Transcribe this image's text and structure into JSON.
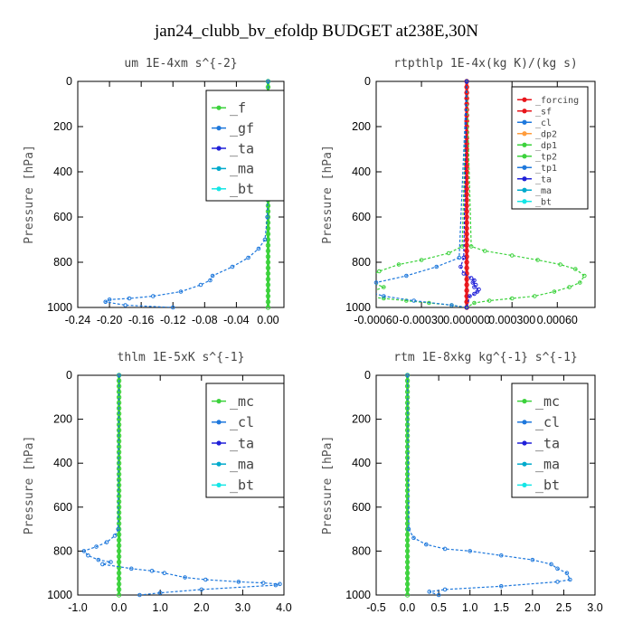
{
  "figure_title": "jan24_clubb_bv_efoldp  BUDGET at238E,30N",
  "colors": {
    "forcing": "#e8151b",
    "sf": "#e8151b",
    "f": "#3cd23c",
    "gf": "#1e78dc",
    "mc": "#3cd23c",
    "cl": "#1e78dc",
    "dp2": "#ff9c3c",
    "dp1": "#3cd23c",
    "tp2": "#3cd23c",
    "tp1": "#1e78dc",
    "ta": "#2020d8",
    "ma": "#00aacc",
    "bt": "#14e6e6"
  },
  "chart_data": [
    {
      "type": "line",
      "title": "um  1E-4xm s^{-2}",
      "ylabel": "Pressure [hPa]",
      "xlim": [
        -0.24,
        0.02
      ],
      "ylim": [
        1000,
        0
      ],
      "xticks": [
        -0.24,
        -0.2,
        -0.16,
        -0.12,
        -0.08,
        -0.04,
        0.0
      ],
      "xtick_labels": [
        "-0.24",
        "-0.20",
        "-0.16",
        "-0.12",
        "-0.08",
        "-0.04",
        "0.00"
      ],
      "yticks": [
        0,
        200,
        400,
        600,
        800,
        1000
      ],
      "legend_position": "top-right",
      "legend_font": 15,
      "series": [
        {
          "name": "_f",
          "key": "f",
          "x": [
            0,
            0,
            0,
            0,
            0,
            0,
            0,
            0,
            0,
            0,
            0,
            0,
            0,
            0,
            0,
            0,
            0,
            0,
            0,
            0,
            0,
            0,
            0,
            0,
            0,
            0,
            0,
            0,
            0,
            0,
            0,
            0,
            0,
            0,
            0,
            0,
            0,
            0,
            0,
            0,
            0
          ],
          "y": [
            0,
            25,
            50,
            75,
            100,
            125,
            150,
            175,
            200,
            225,
            250,
            275,
            300,
            325,
            350,
            375,
            400,
            425,
            450,
            475,
            500,
            525,
            550,
            575,
            600,
            625,
            650,
            675,
            700,
            725,
            750,
            775,
            800,
            825,
            850,
            875,
            900,
            925,
            950,
            975,
            1000
          ]
        },
        {
          "name": "_gf",
          "key": "gf",
          "x": [
            0,
            -0.0005,
            -0.001,
            -0.004,
            -0.012,
            -0.025,
            -0.045,
            -0.07,
            -0.073,
            -0.085,
            -0.11,
            -0.145,
            -0.175,
            -0.2,
            -0.205,
            -0.18,
            -0.12
          ],
          "y": [
            0,
            400,
            600,
            700,
            740,
            780,
            820,
            860,
            880,
            900,
            930,
            950,
            960,
            965,
            975,
            990,
            1000
          ]
        },
        {
          "name": "_ta",
          "key": "ta",
          "x": [],
          "y": []
        },
        {
          "name": "_ma",
          "key": "ma",
          "x": [],
          "y": []
        },
        {
          "name": "_bt",
          "key": "bt",
          "x": [],
          "y": []
        }
      ]
    },
    {
      "type": "line",
      "title": "rtpthlp  1E-4x(kg K)/(kg s)",
      "ylabel": "Pressure [hPa]",
      "xlim": [
        -0.0006,
        0.00085
      ],
      "ylim": [
        1000,
        0
      ],
      "xticks": [
        -0.0006,
        -0.0003,
        0.0,
        0.0003,
        0.0006
      ],
      "xtick_labels": [
        "-0.00060",
        "-0.00030",
        "0.000000",
        "0.000300",
        "0.00060"
      ],
      "yticks": [
        0,
        200,
        400,
        600,
        800,
        1000
      ],
      "legend_position": "top-right",
      "legend_font": 10,
      "series": [
        {
          "name": "_forcing",
          "key": "forcing",
          "x": [
            0,
            0,
            0,
            0,
            0,
            0,
            0,
            0,
            0,
            0,
            0,
            0,
            0,
            0,
            0,
            0,
            0,
            0,
            0,
            0,
            0,
            0,
            0,
            0,
            0,
            0,
            0,
            0,
            0,
            0,
            0,
            0,
            0,
            0,
            0,
            0,
            0,
            0,
            0,
            0,
            0
          ],
          "y": [
            0,
            25,
            50,
            75,
            100,
            125,
            150,
            175,
            200,
            225,
            250,
            275,
            300,
            325,
            350,
            375,
            400,
            425,
            450,
            475,
            500,
            525,
            550,
            575,
            600,
            625,
            650,
            675,
            700,
            725,
            750,
            775,
            800,
            825,
            850,
            875,
            900,
            925,
            950,
            975,
            1000
          ]
        },
        {
          "name": "_sf",
          "key": "sf",
          "x": [
            0,
            0
          ],
          "y": [
            0,
            1000
          ]
        },
        {
          "name": "_cl",
          "key": "cl",
          "x": [],
          "y": []
        },
        {
          "name": "_dp2",
          "key": "dp2",
          "x": [],
          "y": []
        },
        {
          "name": "_dp1",
          "key": "dp1",
          "x": [
            0,
            3e-05,
            0.00012,
            0.0003,
            0.00047,
            0.00062,
            0.00072,
            0.00078,
            0.00075,
            0.00068,
            0.00058,
            0.00045,
            0.0003,
            0.00015,
            5e-05,
            0
          ],
          "y": [
            0,
            730,
            750,
            770,
            790,
            810,
            830,
            860,
            890,
            910,
            930,
            950,
            960,
            970,
            980,
            1000
          ]
        },
        {
          "name": "_tp2",
          "key": "tp2",
          "x": [
            0,
            -3e-05,
            -0.00012,
            -0.0003,
            -0.00045,
            -0.00058,
            -0.00066,
            -0.00063,
            -0.00055,
            -0.00063,
            -0.00068,
            -0.00055,
            -0.0004,
            -0.00025,
            -0.0001,
            0
          ],
          "y": [
            0,
            730,
            760,
            790,
            810,
            840,
            870,
            890,
            910,
            930,
            950,
            960,
            970,
            980,
            990,
            1000
          ]
        },
        {
          "name": "_tp1",
          "key": "tp1",
          "x": [
            0,
            -5e-05,
            -0.0002,
            -0.0004,
            -0.0006,
            -0.0007,
            -0.00055,
            -0.00035,
            -0.0001,
            0
          ],
          "y": [
            0,
            780,
            820,
            860,
            890,
            920,
            950,
            970,
            990,
            1000
          ]
        },
        {
          "name": "_ta",
          "key": "ta",
          "x": [
            0,
            -2e-05,
            -4e-05,
            -2e-05,
            3e-05,
            5e-05,
            4e-05,
            6e-05,
            5e-05,
            8e-05,
            7e-05,
            5e-05,
            2e-05,
            0
          ],
          "y": [
            0,
            780,
            820,
            850,
            870,
            880,
            890,
            900,
            910,
            920,
            930,
            940,
            950,
            1000
          ]
        },
        {
          "name": "_ma",
          "key": "ma",
          "x": [],
          "y": []
        },
        {
          "name": "_bt",
          "key": "bt",
          "x": [],
          "y": []
        }
      ]
    },
    {
      "type": "line",
      "title": "thlm  1E-5xK s^{-1}",
      "ylabel": "Pressure [hPa]",
      "xlim": [
        -1.0,
        4.0
      ],
      "ylim": [
        1000,
        0
      ],
      "xticks": [
        -1.0,
        0.0,
        1.0,
        2.0,
        3.0,
        4.0
      ],
      "xtick_labels": [
        "-1.0",
        "0.0",
        "1.0",
        "2.0",
        "3.0",
        "4.0"
      ],
      "yticks": [
        0,
        200,
        400,
        600,
        800,
        1000
      ],
      "legend_position": "top-right",
      "legend_font": 15,
      "series": [
        {
          "name": "_mc",
          "key": "mc",
          "x": [
            0,
            0,
            0,
            0,
            0,
            0,
            0,
            0,
            0,
            0,
            0,
            0,
            0,
            0,
            0,
            0,
            0,
            0,
            0,
            0,
            0,
            0,
            0,
            0,
            0,
            0,
            0,
            0,
            0,
            0,
            0,
            0,
            0,
            0,
            0,
            0,
            0,
            0,
            0,
            0,
            0
          ],
          "y": [
            0,
            25,
            50,
            75,
            100,
            125,
            150,
            175,
            200,
            225,
            250,
            275,
            300,
            325,
            350,
            375,
            400,
            425,
            450,
            475,
            500,
            525,
            550,
            575,
            600,
            625,
            650,
            675,
            700,
            725,
            750,
            775,
            800,
            825,
            850,
            875,
            900,
            925,
            950,
            975,
            1000
          ]
        },
        {
          "name": "_cl",
          "key": "cl",
          "x": [
            0,
            -0.02,
            -0.1,
            -0.3,
            -0.55,
            -0.85,
            -0.75,
            -0.5,
            -0.2,
            -0.4,
            0.3,
            0.8,
            1.1,
            1.6,
            2.1,
            2.9,
            3.5,
            3.9,
            3.8,
            2.0,
            1.0,
            0.5
          ],
          "y": [
            0,
            700,
            730,
            760,
            780,
            800,
            820,
            840,
            850,
            860,
            880,
            890,
            900,
            920,
            930,
            940,
            945,
            950,
            955,
            975,
            990,
            1000
          ]
        },
        {
          "name": "_ta",
          "key": "ta",
          "x": [],
          "y": []
        },
        {
          "name": "_ma",
          "key": "ma",
          "x": [],
          "y": []
        },
        {
          "name": "_bt",
          "key": "bt",
          "x": [],
          "y": []
        }
      ]
    },
    {
      "type": "line",
      "title": "rtm  1E-8xkg kg^{-1} s^{-1}",
      "ylabel": "Pressure [hPa]",
      "xlim": [
        -0.5,
        3.0
      ],
      "ylim": [
        1000,
        0
      ],
      "xticks": [
        -0.5,
        0.0,
        0.5,
        1.0,
        1.5,
        2.0,
        2.5,
        3.0
      ],
      "xtick_labels": [
        "-0.5",
        "0.0",
        "0.5",
        "1.0",
        "1.5",
        "2.0",
        "2.5",
        "3.0"
      ],
      "yticks": [
        0,
        200,
        400,
        600,
        800,
        1000
      ],
      "legend_position": "top-right",
      "legend_font": 15,
      "series": [
        {
          "name": "_mc",
          "key": "mc",
          "x": [
            0,
            0,
            0,
            0,
            0,
            0,
            0,
            0,
            0,
            0,
            0,
            0,
            0,
            0,
            0,
            0,
            0,
            0,
            0,
            0,
            0,
            0,
            0,
            0,
            0,
            0,
            0,
            0,
            0,
            0,
            0,
            0,
            0,
            0,
            0,
            0,
            0,
            0,
            0,
            0,
            0
          ],
          "y": [
            0,
            25,
            50,
            75,
            100,
            125,
            150,
            175,
            200,
            225,
            250,
            275,
            300,
            325,
            350,
            375,
            400,
            425,
            450,
            475,
            500,
            525,
            550,
            575,
            600,
            625,
            650,
            675,
            700,
            725,
            750,
            775,
            800,
            825,
            850,
            875,
            900,
            925,
            950,
            975,
            1000
          ]
        },
        {
          "name": "_cl",
          "key": "cl",
          "x": [
            0,
            0.02,
            0.1,
            0.3,
            0.6,
            1.0,
            1.5,
            2.0,
            2.3,
            2.4,
            2.55,
            2.6,
            2.4,
            1.5,
            0.6,
            0.35,
            0.5
          ],
          "y": [
            0,
            700,
            740,
            770,
            790,
            800,
            820,
            840,
            860,
            880,
            900,
            930,
            940,
            960,
            975,
            985,
            1000
          ]
        },
        {
          "name": "_ta",
          "key": "ta",
          "x": [],
          "y": []
        },
        {
          "name": "_ma",
          "key": "ma",
          "x": [],
          "y": []
        },
        {
          "name": "_bt",
          "key": "bt",
          "x": [],
          "y": []
        }
      ]
    }
  ]
}
